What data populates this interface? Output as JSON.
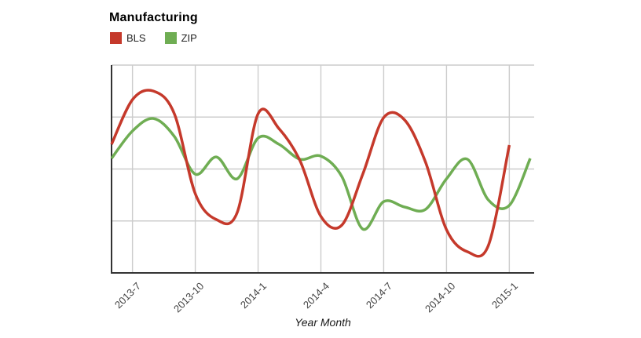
{
  "title": "Manufacturing",
  "legend": {
    "items": [
      {
        "label": "BLS",
        "color": "#c5392b"
      },
      {
        "label": "ZIP",
        "color": "#6fad53"
      }
    ]
  },
  "x_axis": {
    "title": "Year Month",
    "tick_labels": [
      "2013-7",
      "2013-10",
      "2014-1",
      "2014-4",
      "2014-7",
      "2014-10",
      "2015-1"
    ]
  },
  "colors": {
    "bls_line": "#c5392b",
    "zip_line": "#6fad53",
    "gridline": "#cccccc",
    "axis_line": "#333333",
    "tick_label_text": "#444444",
    "title_text": "#000000"
  },
  "chart_data": {
    "type": "line",
    "title": "Manufacturing",
    "xlabel": "Year Month",
    "ylabel": "",
    "x": [
      "2013-6",
      "2013-7",
      "2013-8",
      "2013-9",
      "2013-10",
      "2013-11",
      "2013-12",
      "2014-1",
      "2014-2",
      "2014-3",
      "2014-4",
      "2014-5",
      "2014-6",
      "2014-7",
      "2014-8",
      "2014-9",
      "2014-10",
      "2014-11",
      "2014-12",
      "2015-1",
      "2015-2"
    ],
    "x_tick_labels": [
      "2013-7",
      "2013-10",
      "2014-1",
      "2014-4",
      "2014-7",
      "2014-10",
      "2015-1"
    ],
    "series": [
      {
        "name": "BLS",
        "color": "#c5392b",
        "values": [
          61.9,
          83.4,
          87.5,
          76.6,
          38.1,
          25.7,
          29.0,
          76.6,
          69.4,
          54.0,
          27.2,
          23.0,
          47.5,
          74.7,
          73.6,
          53.2,
          20.8,
          10.2,
          13.2,
          61.5,
          null
        ]
      },
      {
        "name": "ZIP",
        "color": "#6fad53",
        "values": [
          55.1,
          68.3,
          74.3,
          65.7,
          47.5,
          55.8,
          45.3,
          64.9,
          61.9,
          54.7,
          56.2,
          46.4,
          21.1,
          34.3,
          31.7,
          30.6,
          45.3,
          54.7,
          35.1,
          32.5,
          55.1
        ]
      }
    ],
    "ylim": [
      0,
      100
    ],
    "y_axis_labels_visible": false,
    "y_unit": "normalized 0-100 (no y-axis tick labels shown in image)",
    "grid": true,
    "curve": "smooth",
    "legend_position": "top-left"
  }
}
